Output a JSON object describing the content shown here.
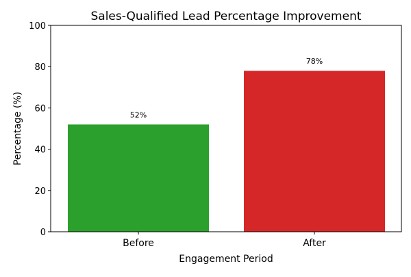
{
  "chart_data": {
    "type": "bar",
    "title": "Sales-Qualified Lead Percentage Improvement",
    "xlabel": "Engagement Period",
    "ylabel": "Percentage (%)",
    "categories": [
      "Before",
      "After"
    ],
    "values": [
      52,
      78
    ],
    "data_labels": [
      "52%",
      "78%"
    ],
    "colors": [
      "#2ca02c",
      "#d62728"
    ],
    "ylim": [
      0,
      100
    ],
    "yticks": [
      0,
      20,
      40,
      60,
      80,
      100
    ],
    "ytick_labels": [
      "0",
      "20",
      "40",
      "60",
      "80",
      "100"
    ],
    "grid": false,
    "legend": "none"
  }
}
